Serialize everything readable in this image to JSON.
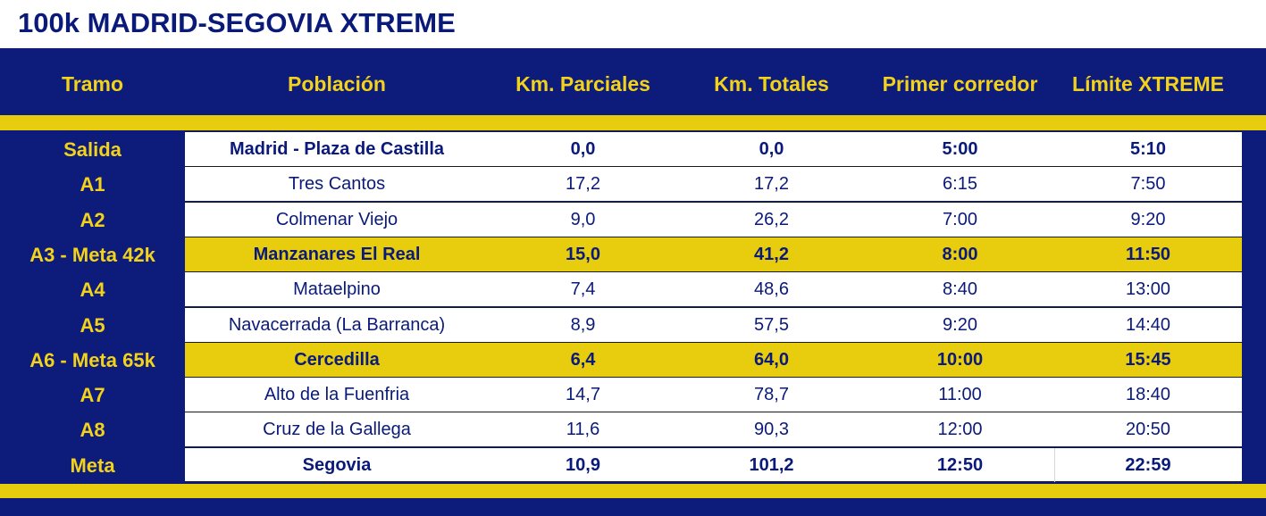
{
  "title": "100k MADRID-SEGOVIA XTREME",
  "headers": [
    "Tramo",
    "Población",
    "Km. Parciales",
    "Km. Totales",
    "Primer corredor",
    "Límite XTREME"
  ],
  "rows": [
    {
      "tramo": "Salida",
      "poblacion": "Madrid - Plaza de Castilla",
      "parciales": "0,0",
      "totales": "0,0",
      "primer": "5:00",
      "limite": "5:10",
      "bold": true,
      "highlight": false
    },
    {
      "tramo": "A1",
      "poblacion": "Tres Cantos",
      "parciales": "17,2",
      "totales": "17,2",
      "primer": "6:15",
      "limite": "7:50",
      "bold": false,
      "highlight": false
    },
    {
      "tramo": "A2",
      "poblacion": "Colmenar Viejo",
      "parciales": "9,0",
      "totales": "26,2",
      "primer": "7:00",
      "limite": "9:20",
      "bold": false,
      "highlight": false
    },
    {
      "tramo": "A3 - Meta 42k",
      "poblacion": "Manzanares El Real",
      "parciales": "15,0",
      "totales": "41,2",
      "primer": "8:00",
      "limite": "11:50",
      "bold": true,
      "highlight": true
    },
    {
      "tramo": "A4",
      "poblacion": "Mataelpino",
      "parciales": "7,4",
      "totales": "48,6",
      "primer": "8:40",
      "limite": "13:00",
      "bold": false,
      "highlight": false
    },
    {
      "tramo": "A5",
      "poblacion": "Navacerrada (La Barranca)",
      "parciales": "8,9",
      "totales": "57,5",
      "primer": "9:20",
      "limite": "14:40",
      "bold": false,
      "highlight": false
    },
    {
      "tramo": "A6 - Meta 65k",
      "poblacion": "Cercedilla",
      "parciales": "6,4",
      "totales": "64,0",
      "primer": "10:00",
      "limite": "15:45",
      "bold": true,
      "highlight": true
    },
    {
      "tramo": "A7",
      "poblacion": "Alto de la Fuenfria",
      "parciales": "14,7",
      "totales": "78,7",
      "primer": "11:00",
      "limite": "18:40",
      "bold": false,
      "highlight": false
    },
    {
      "tramo": "A8",
      "poblacion": "Cruz de la Gallega",
      "parciales": "11,6",
      "totales": "90,3",
      "primer": "12:00",
      "limite": "20:50",
      "bold": false,
      "highlight": false
    },
    {
      "tramo": "Meta",
      "poblacion": "Segovia",
      "parciales": "10,9",
      "totales": "101,2",
      "primer": "12:50",
      "limite": "22:59",
      "bold": true,
      "highlight": false
    }
  ],
  "colors": {
    "navy": "#0d1b7a",
    "yellow": "#e8cc0e",
    "header_text": "#f2d21a",
    "body_text": "#0a1a7a"
  }
}
